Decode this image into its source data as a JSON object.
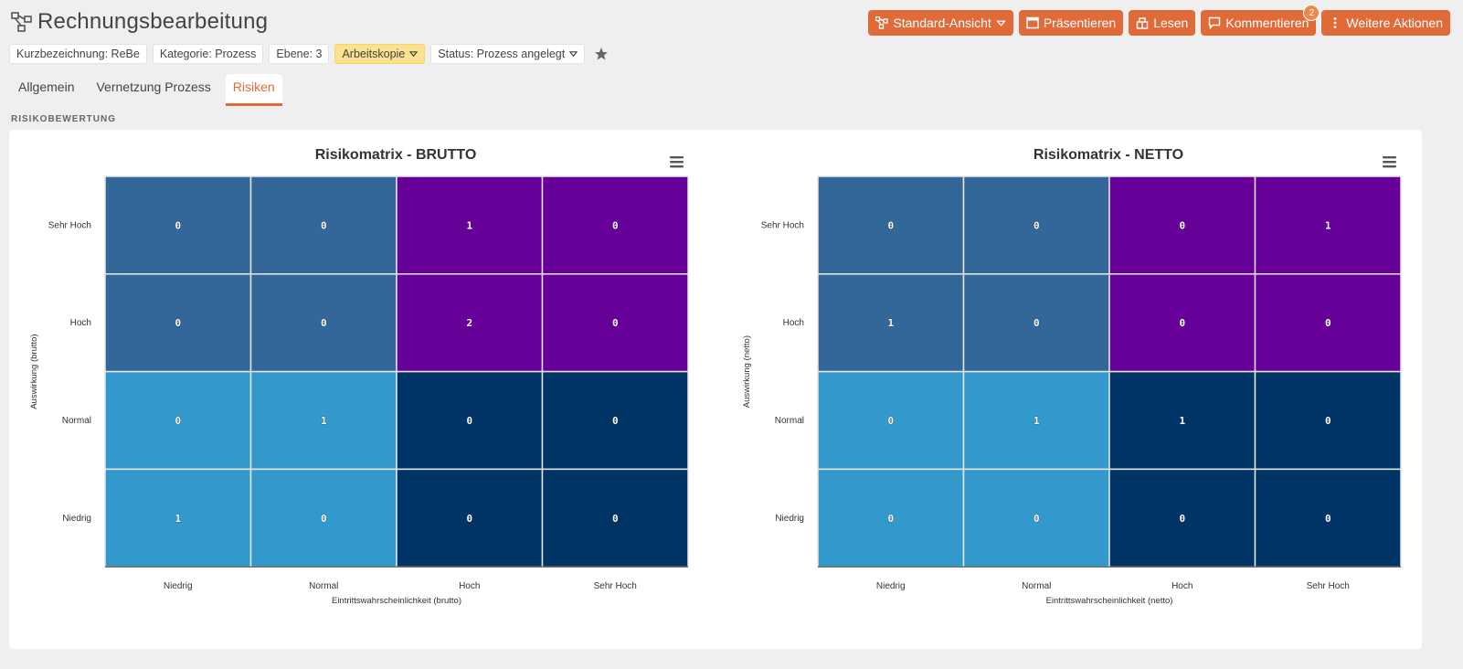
{
  "page": {
    "title": "Rechnungsbearbeitung",
    "section_label": "RISIKOBEWERTUNG"
  },
  "actions": [
    {
      "label": "Standard-Ansicht",
      "icon": "process-icon",
      "caret": true
    },
    {
      "label": "Präsentieren",
      "icon": "presentation-icon"
    },
    {
      "label": "Lesen",
      "icon": "read-icon"
    },
    {
      "label": "Kommentieren",
      "icon": "comment-icon",
      "badge": "2"
    },
    {
      "label": "Weitere Aktionen",
      "icon": "more-icon"
    }
  ],
  "tags": [
    {
      "label": "Kurzbezeichnung: ReBe"
    },
    {
      "label": "Kategorie: Prozess"
    },
    {
      "label": "Ebene: 3"
    },
    {
      "label": "Arbeitskopie",
      "caret": true,
      "highlight": true
    },
    {
      "label": "Status: Prozess angelegt",
      "caret": true
    }
  ],
  "tabs": [
    {
      "label": "Allgemein",
      "active": false
    },
    {
      "label": "Vernetzung Prozess",
      "active": false
    },
    {
      "label": "Risiken",
      "active": true
    }
  ],
  "colors": {
    "accent": "#e16a39",
    "cell_medium_blue": "#336699",
    "cell_purple": "#660099",
    "cell_light_blue": "#3399cc",
    "cell_dark_blue": "#003366"
  },
  "chart_data": [
    {
      "type": "heatmap",
      "title": "Risikomatrix - BRUTTO",
      "xlabel": "Eintrittswahrscheinlichkeit (brutto)",
      "ylabel": "Auswirkung (brutto)",
      "x_categories": [
        "Niedrig",
        "Normal",
        "Hoch",
        "Sehr Hoch"
      ],
      "y_categories": [
        "Sehr Hoch",
        "Hoch",
        "Normal",
        "Niedrig"
      ],
      "values": [
        [
          0,
          0,
          1,
          0
        ],
        [
          0,
          0,
          2,
          0
        ],
        [
          0,
          1,
          0,
          0
        ],
        [
          1,
          0,
          0,
          0
        ]
      ],
      "cell_colors": [
        [
          "#336699",
          "#336699",
          "#660099",
          "#660099"
        ],
        [
          "#336699",
          "#336699",
          "#660099",
          "#660099"
        ],
        [
          "#3399cc",
          "#3399cc",
          "#003366",
          "#003366"
        ],
        [
          "#3399cc",
          "#3399cc",
          "#003366",
          "#003366"
        ]
      ],
      "menu_icon": "hamburger-menu-icon"
    },
    {
      "type": "heatmap",
      "title": "Risikomatrix - NETTO",
      "xlabel": "Eintrittswahrscheinlichkeit (netto)",
      "ylabel": "Auswirkung (netto)",
      "x_categories": [
        "Niedrig",
        "Normal",
        "Hoch",
        "Sehr Hoch"
      ],
      "y_categories": [
        "Sehr Hoch",
        "Hoch",
        "Normal",
        "Niedrig"
      ],
      "values": [
        [
          0,
          0,
          0,
          1
        ],
        [
          1,
          0,
          0,
          0
        ],
        [
          0,
          1,
          1,
          0
        ],
        [
          0,
          0,
          0,
          0
        ]
      ],
      "cell_colors": [
        [
          "#336699",
          "#336699",
          "#660099",
          "#660099"
        ],
        [
          "#336699",
          "#336699",
          "#660099",
          "#660099"
        ],
        [
          "#3399cc",
          "#3399cc",
          "#003366",
          "#003366"
        ],
        [
          "#3399cc",
          "#3399cc",
          "#003366",
          "#003366"
        ]
      ],
      "menu_icon": "hamburger-menu-icon"
    }
  ]
}
